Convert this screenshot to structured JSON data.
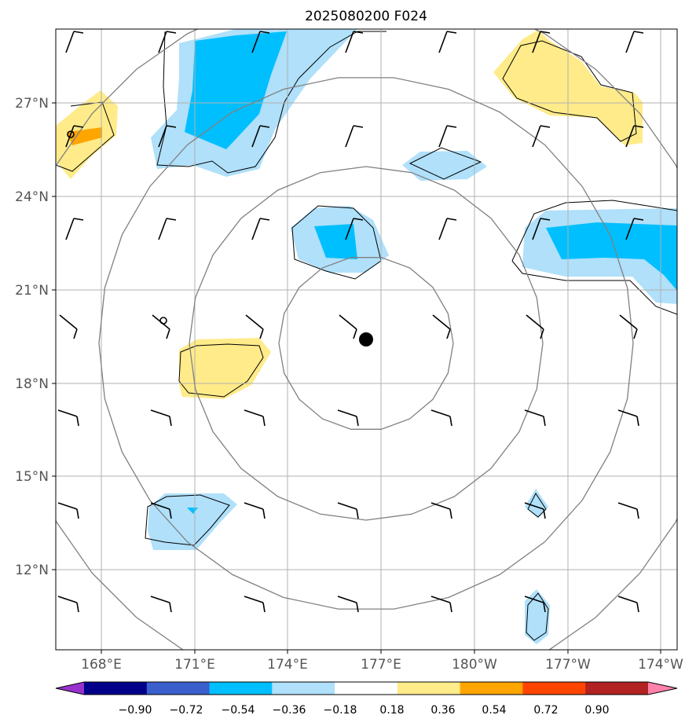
{
  "title": "2025080200 F024",
  "map": {
    "lon_labels": [
      "168°E",
      "171°E",
      "174°E",
      "177°E",
      "180°W",
      "177°W",
      "174°W"
    ],
    "lat_labels": [
      "27°N",
      "24°N",
      "21°N",
      "18°N",
      "15°N",
      "12°N"
    ],
    "grid": true,
    "center_marker": "filled black circle",
    "range_rings": 4,
    "colors": {
      "light_blue": "#b0e0fa",
      "blue": "#00bfff",
      "light_yellow": "#ffeb8a",
      "orange": "#ffa500",
      "ring": "#808080",
      "grid": "#b0b0b0"
    }
  },
  "colorbar": {
    "levels": [
      "−0.90",
      "−0.72",
      "−0.54",
      "−0.36",
      "−0.18",
      "0.18",
      "0.36",
      "0.54",
      "0.72",
      "0.90"
    ],
    "colors": [
      "#9932cc",
      "#00008b",
      "#3a5fcd",
      "#00bfff",
      "#b0e0fa",
      "#ffffff",
      "#ffeb8a",
      "#ffa500",
      "#ff4500",
      "#b22222",
      "#ff82ab"
    ],
    "extend": "both"
  }
}
